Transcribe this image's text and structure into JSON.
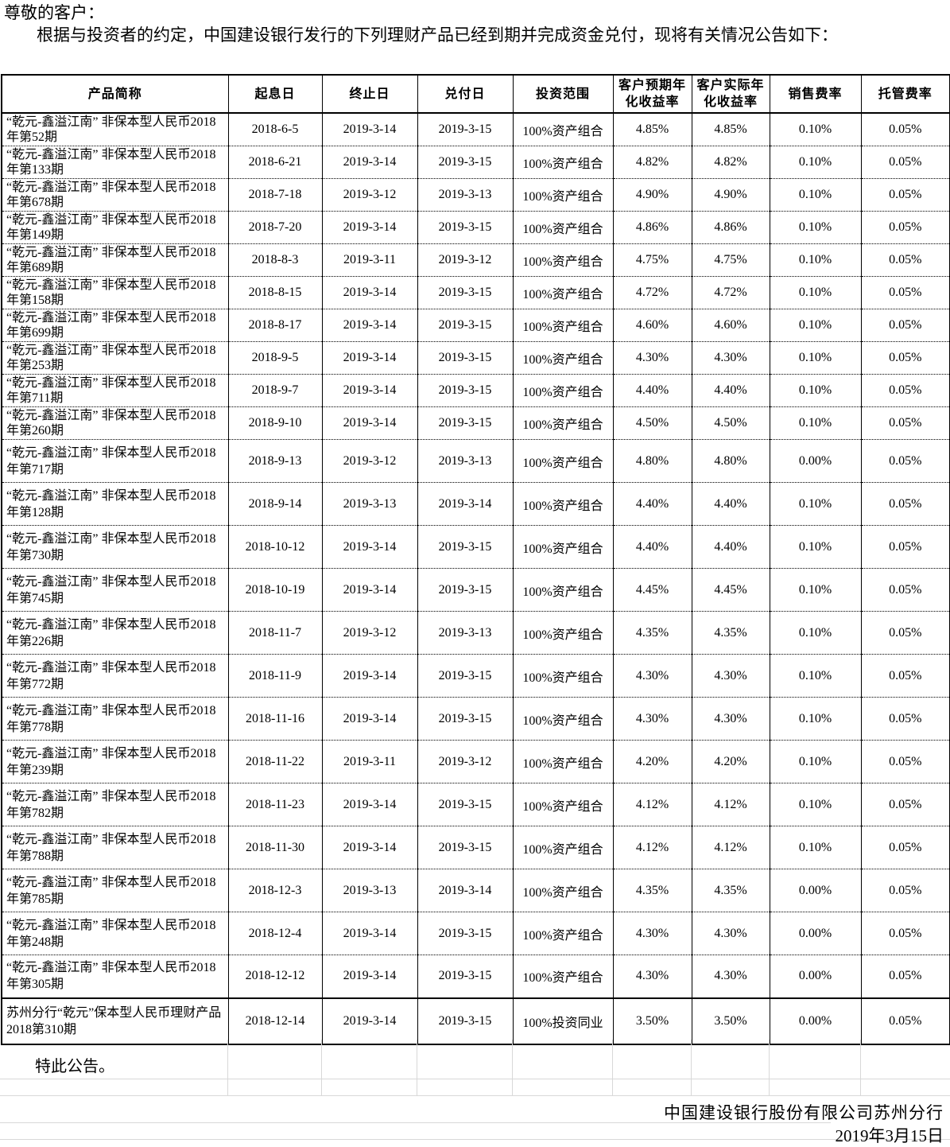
{
  "intro": {
    "salutation": "尊敬的客户：",
    "body": "根据与投资者的约定，中国建设银行发行的下列理财产品已经到期并完成资金兑付，现将有关情况公告如下："
  },
  "table": {
    "headers": [
      "产品简称",
      "起息日",
      "终止日",
      "兑付日",
      "投资范围",
      "客户预期年\n化收益率",
      "客户实际年\n化收益率",
      "销售费率",
      "托管费率"
    ],
    "rows": [
      [
        "“乾元-鑫溢江南” 非保本型人民币2018\n年第52期",
        "2018-6-5",
        "2019-3-14",
        "2019-3-15",
        "100%资产组合",
        "4.85%",
        "4.85%",
        "0.10%",
        "0.05%"
      ],
      [
        "“乾元-鑫溢江南” 非保本型人民币2018\n年第133期",
        "2018-6-21",
        "2019-3-14",
        "2019-3-15",
        "100%资产组合",
        "4.82%",
        "4.82%",
        "0.10%",
        "0.05%"
      ],
      [
        "“乾元-鑫溢江南” 非保本型人民币2018\n年第678期",
        "2018-7-18",
        "2019-3-12",
        "2019-3-13",
        "100%资产组合",
        "4.90%",
        "4.90%",
        "0.10%",
        "0.05%"
      ],
      [
        "“乾元-鑫溢江南” 非保本型人民币2018\n年第149期",
        "2018-7-20",
        "2019-3-14",
        "2019-3-15",
        "100%资产组合",
        "4.86%",
        "4.86%",
        "0.10%",
        "0.05%"
      ],
      [
        "“乾元-鑫溢江南” 非保本型人民币2018\n年第689期",
        "2018-8-3",
        "2019-3-11",
        "2019-3-12",
        "100%资产组合",
        "4.75%",
        "4.75%",
        "0.10%",
        "0.05%"
      ],
      [
        "“乾元-鑫溢江南” 非保本型人民币2018\n年第158期",
        "2018-8-15",
        "2019-3-14",
        "2019-3-15",
        "100%资产组合",
        "4.72%",
        "4.72%",
        "0.10%",
        "0.05%"
      ],
      [
        "“乾元-鑫溢江南” 非保本型人民币2018\n年第699期",
        "2018-8-17",
        "2019-3-14",
        "2019-3-15",
        "100%资产组合",
        "4.60%",
        "4.60%",
        "0.10%",
        "0.05%"
      ],
      [
        "“乾元-鑫溢江南” 非保本型人民币2018\n年第253期",
        "2018-9-5",
        "2019-3-14",
        "2019-3-15",
        "100%资产组合",
        "4.30%",
        "4.30%",
        "0.10%",
        "0.05%"
      ],
      [
        "“乾元-鑫溢江南” 非保本型人民币2018\n年第711期",
        "2018-9-7",
        "2019-3-14",
        "2019-3-15",
        "100%资产组合",
        "4.40%",
        "4.40%",
        "0.10%",
        "0.05%"
      ],
      [
        "“乾元-鑫溢江南” 非保本型人民币2018\n年第260期",
        "2018-9-10",
        "2019-3-14",
        "2019-3-15",
        "100%资产组合",
        "4.50%",
        "4.50%",
        "0.10%",
        "0.05%"
      ],
      [
        "“乾元-鑫溢江南” 非保本型人民币2018\n年第717期",
        "2018-9-13",
        "2019-3-12",
        "2019-3-13",
        "100%资产组合",
        "4.80%",
        "4.80%",
        "0.00%",
        "0.05%"
      ],
      [
        "“乾元-鑫溢江南” 非保本型人民币2018\n年第128期",
        "2018-9-14",
        "2019-3-13",
        "2019-3-14",
        "100%资产组合",
        "4.40%",
        "4.40%",
        "0.10%",
        "0.05%"
      ],
      [
        "“乾元-鑫溢江南” 非保本型人民币2018\n年第730期",
        "2018-10-12",
        "2019-3-14",
        "2019-3-15",
        "100%资产组合",
        "4.40%",
        "4.40%",
        "0.10%",
        "0.05%"
      ],
      [
        "“乾元-鑫溢江南” 非保本型人民币2018\n年第745期",
        "2018-10-19",
        "2019-3-14",
        "2019-3-15",
        "100%资产组合",
        "4.45%",
        "4.45%",
        "0.10%",
        "0.05%"
      ],
      [
        "“乾元-鑫溢江南” 非保本型人民币2018\n年第226期",
        "2018-11-7",
        "2019-3-12",
        "2019-3-13",
        "100%资产组合",
        "4.35%",
        "4.35%",
        "0.10%",
        "0.05%"
      ],
      [
        "“乾元-鑫溢江南” 非保本型人民币2018\n年第772期",
        "2018-11-9",
        "2019-3-14",
        "2019-3-15",
        "100%资产组合",
        "4.30%",
        "4.30%",
        "0.10%",
        "0.05%"
      ],
      [
        "“乾元-鑫溢江南” 非保本型人民币2018\n年第778期",
        "2018-11-16",
        "2019-3-14",
        "2019-3-15",
        "100%资产组合",
        "4.30%",
        "4.30%",
        "0.10%",
        "0.05%"
      ],
      [
        "“乾元-鑫溢江南” 非保本型人民币2018\n年第239期",
        "2018-11-22",
        "2019-3-11",
        "2019-3-12",
        "100%资产组合",
        "4.20%",
        "4.20%",
        "0.10%",
        "0.05%"
      ],
      [
        "“乾元-鑫溢江南” 非保本型人民币2018\n年第782期",
        "2018-11-23",
        "2019-3-14",
        "2019-3-15",
        "100%资产组合",
        "4.12%",
        "4.12%",
        "0.10%",
        "0.05%"
      ],
      [
        "“乾元-鑫溢江南” 非保本型人民币2018\n年第788期",
        "2018-11-30",
        "2019-3-14",
        "2019-3-15",
        "100%资产组合",
        "4.12%",
        "4.12%",
        "0.10%",
        "0.05%"
      ],
      [
        "“乾元-鑫溢江南” 非保本型人民币2018\n年第785期",
        "2018-12-3",
        "2019-3-13",
        "2019-3-14",
        "100%资产组合",
        "4.35%",
        "4.35%",
        "0.00%",
        "0.05%"
      ],
      [
        "“乾元-鑫溢江南” 非保本型人民币2018\n年第248期",
        "2018-12-4",
        "2019-3-14",
        "2019-3-15",
        "100%资产组合",
        "4.30%",
        "4.30%",
        "0.00%",
        "0.05%"
      ],
      [
        "“乾元-鑫溢江南” 非保本型人民币2018\n年第305期",
        "2018-12-12",
        "2019-3-14",
        "2019-3-15",
        "100%资产组合",
        "4.30%",
        "4.30%",
        "0.00%",
        "0.05%"
      ],
      [
        "苏州分行“乾元”保本型人民币理财产品\n2018第310期",
        "2018-12-14",
        "2019-3-14",
        "2019-3-15",
        "100%投资同业",
        "3.50%",
        "3.50%",
        "0.00%",
        "0.05%"
      ]
    ]
  },
  "footer": {
    "closing": "特此公告。",
    "issuer": "中国建设银行股份有限公司苏州分行",
    "date": "2019年3月15日"
  }
}
